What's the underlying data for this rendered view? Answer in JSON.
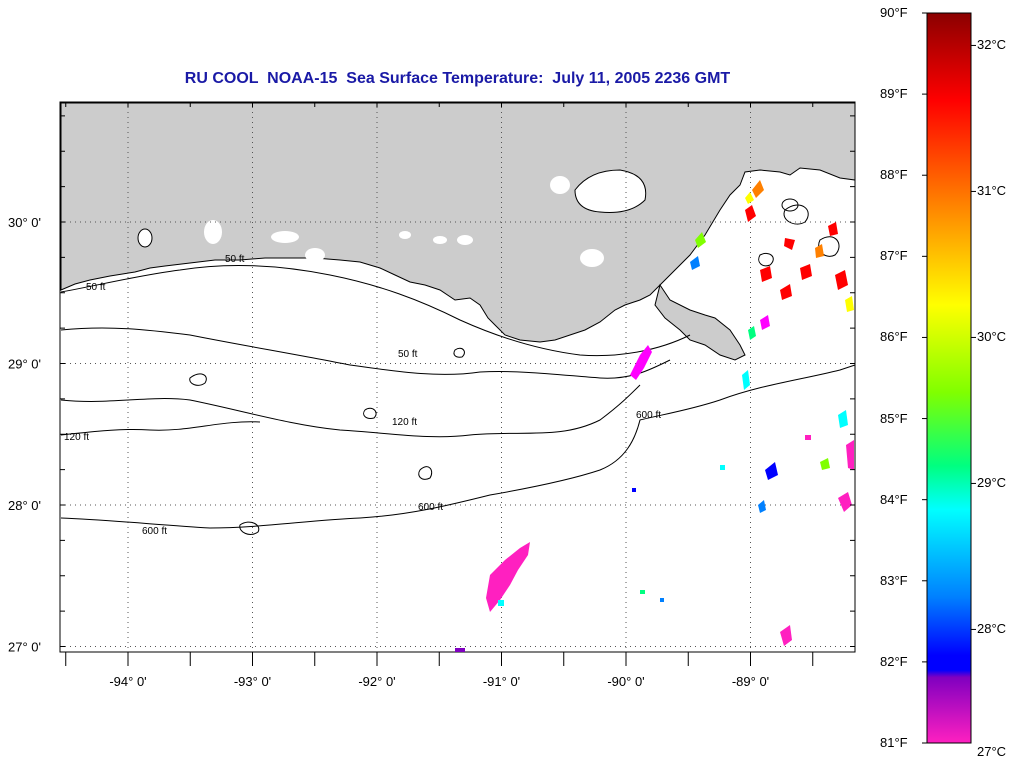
{
  "title": "RU COOL  NOAA-15  Sea Surface Temperature:  July 11, 2005 2236 GMT",
  "map": {
    "lat_ticks": [
      {
        "value": 30,
        "label": "30° 0'"
      },
      {
        "value": 29,
        "label": "29° 0'"
      },
      {
        "value": 28,
        "label": "28° 0'"
      },
      {
        "value": 27,
        "label": "27° 0'"
      }
    ],
    "lon_ticks": [
      {
        "value": -94,
        "label": "-94° 0'"
      },
      {
        "value": -93,
        "label": "-93° 0'"
      },
      {
        "value": -92,
        "label": "-92° 0'"
      },
      {
        "value": -91,
        "label": "-91° 0'"
      },
      {
        "value": -90,
        "label": "-90° 0'"
      },
      {
        "value": -89,
        "label": "-89° 0'"
      }
    ],
    "contour_labels": [
      "50 ft",
      "120 ft",
      "600 ft"
    ],
    "land_color": "#cccccc",
    "grid_style": "dotted"
  },
  "colorbar": {
    "fahrenheit_labels": [
      "90°F",
      "89°F",
      "88°F",
      "87°F",
      "86°F",
      "85°F",
      "84°F",
      "83°F",
      "82°F",
      "81°F"
    ],
    "celsius_labels": [
      "32°C",
      "31°C",
      "30°C",
      "29°C",
      "28°C",
      "27°C"
    ],
    "colors": [
      "#8b0000",
      "#ff0000",
      "#ff8000",
      "#ffff00",
      "#80ff00",
      "#00ff80",
      "#00ffff",
      "#0080ff",
      "#0000ff",
      "#8000c0",
      "#ff00ff",
      "#ff20c0"
    ]
  }
}
